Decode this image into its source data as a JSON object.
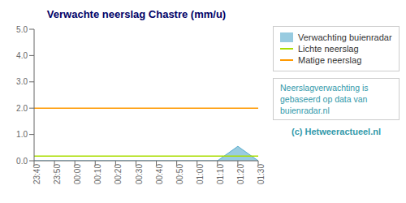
{
  "chart_data": {
    "type": "area",
    "title": "Verwachte neerslag Chastre (mm/u)",
    "categories": [
      "23:40",
      "23:50",
      "00:00",
      "00:10",
      "00:20",
      "00:30",
      "00:40",
      "00:50",
      "01:00",
      "01:10",
      "01:20",
      "01:30"
    ],
    "series": [
      {
        "name": "Verwachting buienradar",
        "color": "#55aacc",
        "values": [
          0.0,
          0.0,
          0.0,
          0.0,
          0.0,
          0.0,
          0.0,
          0.0,
          0.0,
          0.0,
          0.55,
          0.0
        ]
      }
    ],
    "reference_lines": [
      {
        "name": "Lichte neerslag",
        "value": 0.18,
        "color": "#aadd00"
      },
      {
        "name": "Matige neerslag",
        "value": 2.0,
        "color": "#ff9900"
      }
    ],
    "ylim": [
      0,
      5.0
    ],
    "yticks": [
      {
        "value": 0,
        "label": "0.0"
      },
      {
        "value": 1,
        "label": "1.0"
      },
      {
        "value": 2,
        "label": "2.0"
      },
      {
        "value": 3,
        "label": "3.0"
      },
      {
        "value": 4,
        "label": "4.0"
      },
      {
        "value": 5,
        "label": "5.0"
      }
    ],
    "grid": false,
    "legend": "right",
    "annotations": [
      "Neerslagverwachting is\ngebaseerd op data van\nbuienradar.nl",
      "(c) Hetweeractueel.nl"
    ]
  }
}
